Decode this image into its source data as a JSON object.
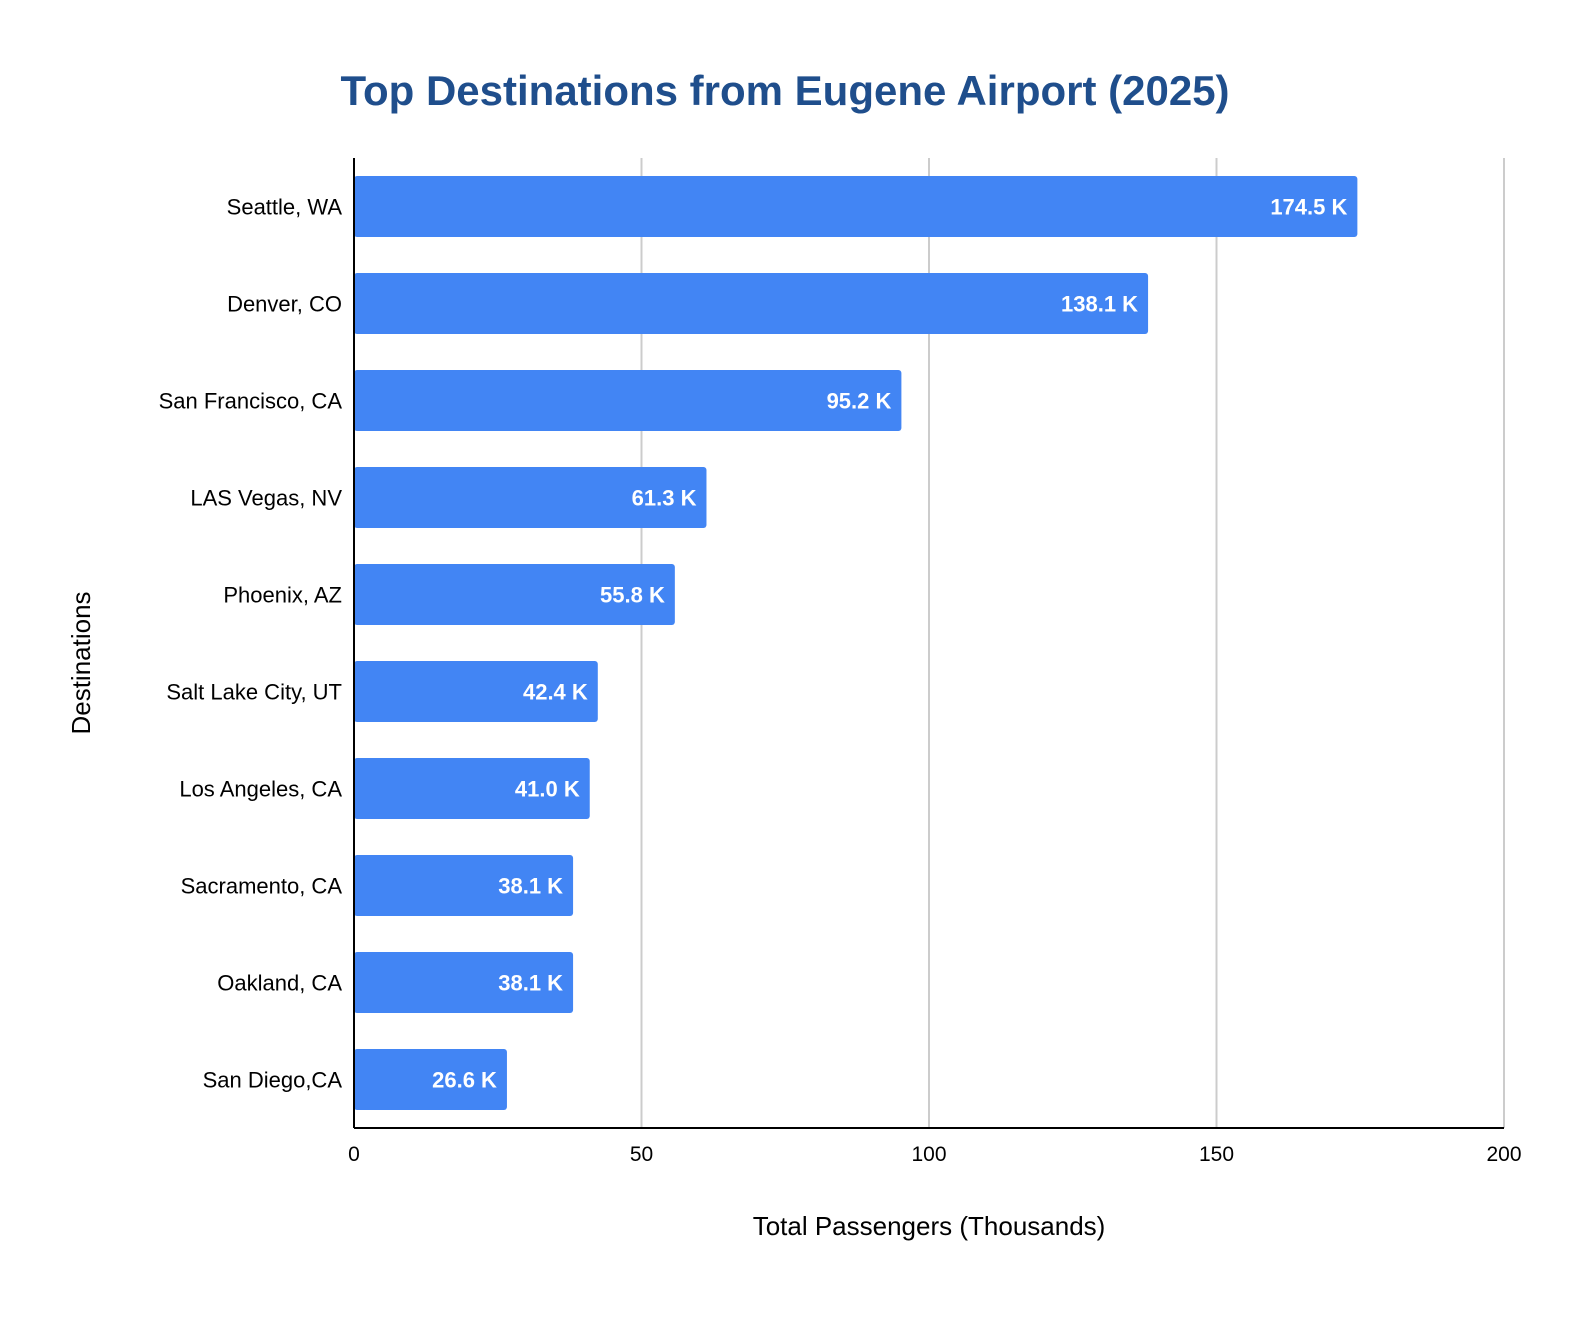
{
  "chart_data": {
    "type": "bar",
    "orientation": "horizontal",
    "title": "Top Destinations from Eugene Airport (2025)",
    "xlabel": "Total Passengers (Thousands)",
    "ylabel": "Destinations",
    "xlim": [
      0,
      200
    ],
    "xticks": [
      0,
      50,
      100,
      150,
      200
    ],
    "grid": true,
    "categories": [
      "Seattle, WA",
      "Denver, CO",
      "San Francisco, CA",
      "LAS Vegas, NV",
      "Phoenix, AZ",
      "Salt Lake City, UT",
      "Los Angeles, CA",
      "Sacramento, CA",
      "Oakland, CA",
      "San Diego,CA"
    ],
    "values": [
      174.5,
      138.1,
      95.2,
      61.3,
      55.8,
      42.4,
      41.0,
      38.1,
      38.1,
      26.6
    ],
    "data_labels": [
      "174.5 K",
      "138.1 K",
      "95.2 K",
      "61.3 K",
      "55.8 K",
      "42.4 K",
      "41.0 K",
      "38.1 K",
      "38.1 K",
      "26.6 K"
    ]
  },
  "colors": {
    "bar": "#4285f4",
    "title": "#1f4e8c",
    "grid": "#cccccc",
    "axis": "#000000"
  }
}
